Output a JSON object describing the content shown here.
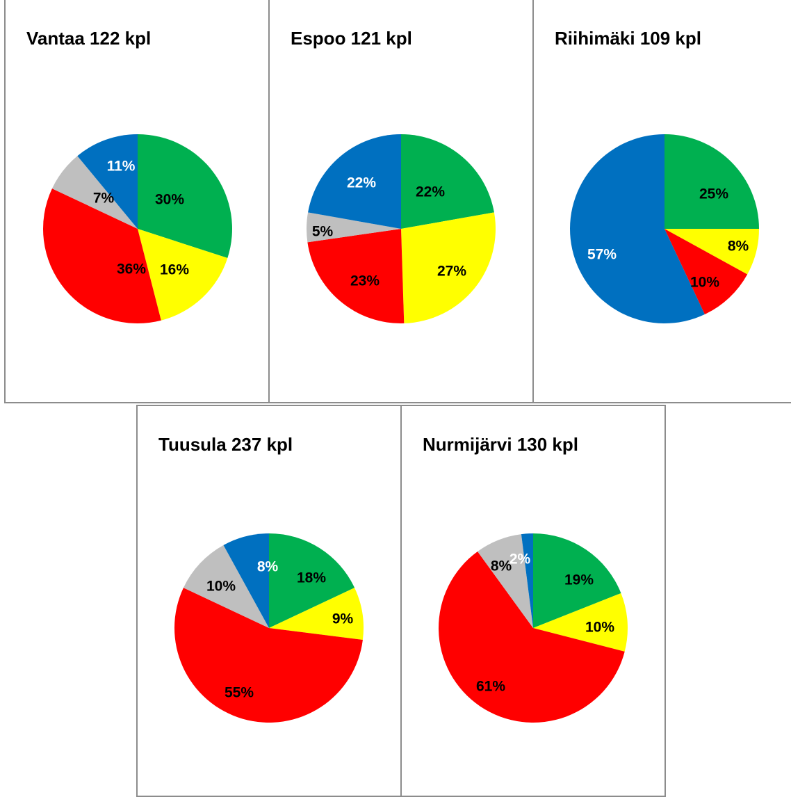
{
  "chart_data": [
    {
      "type": "pie",
      "title": "Vantaa 122 kpl",
      "slices": [
        {
          "value": 30,
          "label": "30%",
          "color": "#00b050",
          "label_color": "#000000"
        },
        {
          "value": 16,
          "label": "16%",
          "color": "#ffff00",
          "label_color": "#000000"
        },
        {
          "value": 36,
          "label": "36%",
          "color": "#ff0000",
          "label_color": "#000000"
        },
        {
          "value": 7,
          "label": "7%",
          "color": "#bfbfbf",
          "label_color": "#000000"
        },
        {
          "value": 11,
          "label": "11%",
          "color": "#0070c0",
          "label_color": "#ffffff"
        }
      ]
    },
    {
      "type": "pie",
      "title": "Espoo 121 kpl",
      "slices": [
        {
          "value": 22,
          "label": "22%",
          "color": "#00b050",
          "label_color": "#000000"
        },
        {
          "value": 27,
          "label": "27%",
          "color": "#ffff00",
          "label_color": "#000000"
        },
        {
          "value": 23,
          "label": "23%",
          "color": "#ff0000",
          "label_color": "#000000"
        },
        {
          "value": 5,
          "label": "5%",
          "color": "#bfbfbf",
          "label_color": "#000000"
        },
        {
          "value": 22,
          "label": "22%",
          "color": "#0070c0",
          "label_color": "#ffffff"
        }
      ]
    },
    {
      "type": "pie",
      "title": "Riihimäki 109 kpl",
      "slices": [
        {
          "value": 25,
          "label": "25%",
          "color": "#00b050",
          "label_color": "#000000"
        },
        {
          "value": 8,
          "label": "8%",
          "color": "#ffff00",
          "label_color": "#000000"
        },
        {
          "value": 10,
          "label": "10%",
          "color": "#ff0000",
          "label_color": "#000000"
        },
        {
          "value": 57,
          "label": "57%",
          "color": "#0070c0",
          "label_color": "#ffffff"
        }
      ]
    },
    {
      "type": "pie",
      "title": "Tuusula 237 kpl",
      "slices": [
        {
          "value": 18,
          "label": "18%",
          "color": "#00b050",
          "label_color": "#000000"
        },
        {
          "value": 9,
          "label": "9%",
          "color": "#ffff00",
          "label_color": "#000000"
        },
        {
          "value": 55,
          "label": "55%",
          "color": "#ff0000",
          "label_color": "#000000"
        },
        {
          "value": 10,
          "label": "10%",
          "color": "#bfbfbf",
          "label_color": "#000000"
        },
        {
          "value": 8,
          "label": "8%",
          "color": "#0070c0",
          "label_color": "#ffffff"
        }
      ]
    },
    {
      "type": "pie",
      "title": "Nurmijärvi 130 kpl",
      "slices": [
        {
          "value": 19,
          "label": "19%",
          "color": "#00b050",
          "label_color": "#000000"
        },
        {
          "value": 10,
          "label": "10%",
          "color": "#ffff00",
          "label_color": "#000000"
        },
        {
          "value": 61,
          "label": "61%",
          "color": "#ff0000",
          "label_color": "#000000"
        },
        {
          "value": 8,
          "label": "8%",
          "color": "#bfbfbf",
          "label_color": "#000000"
        },
        {
          "value": 2,
          "label": "2%",
          "color": "#0070c0",
          "label_color": "#ffffff"
        }
      ]
    }
  ]
}
